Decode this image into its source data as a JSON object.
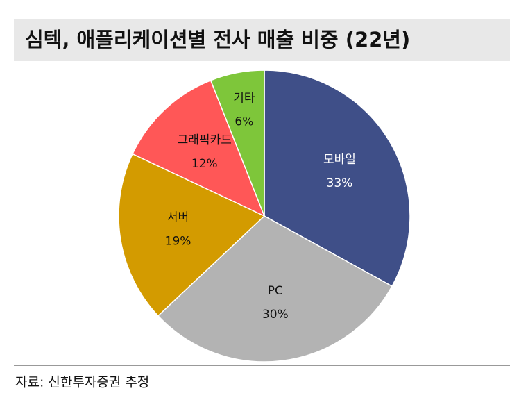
{
  "chart_data": {
    "type": "pie",
    "title": "심텍, 애플리케이션별 전사 매출 비중 (22년)",
    "categories": [
      "모바일",
      "PC",
      "서버",
      "그래픽카드",
      "기타"
    ],
    "values": [
      33,
      30,
      19,
      12,
      6
    ],
    "value_labels": [
      "33%",
      "30%",
      "19%",
      "12%",
      "6%"
    ],
    "colors": [
      "#3f4f88",
      "#b3b3b3",
      "#d39b00",
      "#ff5757",
      "#7ec63a"
    ],
    "source": "자료: 신한투자증권 추정"
  }
}
